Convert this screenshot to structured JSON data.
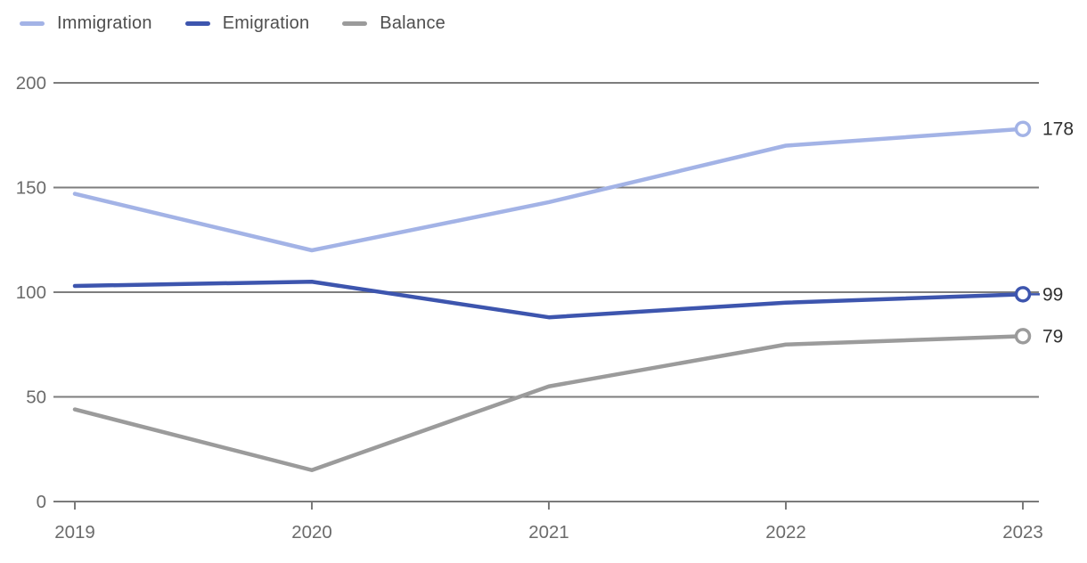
{
  "legend": {
    "items": [
      {
        "label": "Immigration",
        "color": "#a3b3e6"
      },
      {
        "label": "Emigration",
        "color": "#3d55ae"
      },
      {
        "label": "Balance",
        "color": "#9b9b9b"
      }
    ]
  },
  "chart_data": {
    "type": "line",
    "title": "",
    "xlabel": "",
    "ylabel": "",
    "x": [
      2019,
      2020,
      2021,
      2022,
      2023
    ],
    "series": [
      {
        "name": "Immigration",
        "color": "#a3b3e6",
        "values": [
          147,
          120,
          143,
          170,
          178
        ],
        "end_label": "178",
        "leader": false
      },
      {
        "name": "Emigration",
        "color": "#3d55ae",
        "values": [
          103,
          105,
          88,
          95,
          99
        ],
        "end_label": "99",
        "leader": true
      },
      {
        "name": "Balance",
        "color": "#9b9b9b",
        "values": [
          44,
          15,
          55,
          75,
          79
        ],
        "end_label": "79",
        "leader": false
      }
    ],
    "ylim": [
      0,
      200
    ],
    "yticks": [
      0,
      50,
      100,
      150,
      200
    ],
    "grid": true,
    "legend_position": "top-left",
    "end_markers": "open-circle"
  },
  "colors": {
    "gridline": "#7d7d7d",
    "axis_line": "#7a7a7a",
    "axis_tick_label": "#6b6b6b",
    "value_label": "#303030",
    "legend_text": "#4e4e4e",
    "background": "#ffffff"
  }
}
